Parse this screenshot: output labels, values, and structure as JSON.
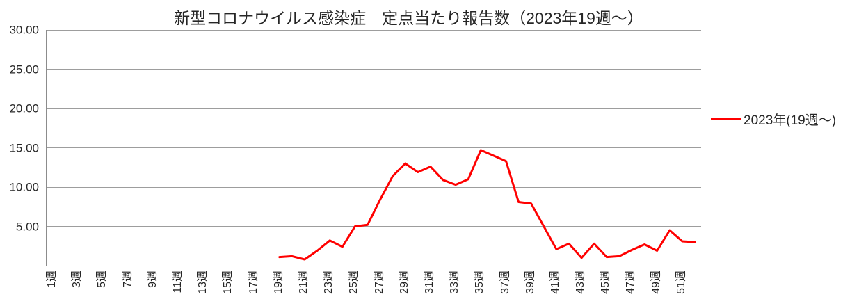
{
  "title": "新型コロナウイルス感染症　定点当たり報告数（2023年19週～）",
  "legend": {
    "label": "2023年(19週～)",
    "color": "#ff0000"
  },
  "chart_data": {
    "type": "line",
    "title": "新型コロナウイルス感染症　定点当たり報告数（2023年19週～）",
    "xlabel": "",
    "ylabel": "",
    "ylim": [
      0,
      30
    ],
    "grid": "horizontal-only",
    "legend_position": "right",
    "x_categories_count": 52,
    "y_ticks": [
      {
        "label": "30.00",
        "value": 30
      },
      {
        "label": "25.00",
        "value": 25
      },
      {
        "label": "20.00",
        "value": 20
      },
      {
        "label": "15.00",
        "value": 15
      },
      {
        "label": "10.00",
        "value": 10
      },
      {
        "label": "5.00",
        "value": 5
      }
    ],
    "x_ticks": [
      {
        "label": "1週",
        "week": 1
      },
      {
        "label": "3週",
        "week": 3
      },
      {
        "label": "5週",
        "week": 5
      },
      {
        "label": "7週",
        "week": 7
      },
      {
        "label": "9週",
        "week": 9
      },
      {
        "label": "11週",
        "week": 11
      },
      {
        "label": "13週",
        "week": 13
      },
      {
        "label": "15週",
        "week": 15
      },
      {
        "label": "17週",
        "week": 17
      },
      {
        "label": "19週",
        "week": 19
      },
      {
        "label": "21週",
        "week": 21
      },
      {
        "label": "23週",
        "week": 23
      },
      {
        "label": "25週",
        "week": 25
      },
      {
        "label": "27週",
        "week": 27
      },
      {
        "label": "29週",
        "week": 29
      },
      {
        "label": "31週",
        "week": 31
      },
      {
        "label": "33週",
        "week": 33
      },
      {
        "label": "35週",
        "week": 35
      },
      {
        "label": "37週",
        "week": 37
      },
      {
        "label": "39週",
        "week": 39
      },
      {
        "label": "41週",
        "week": 41
      },
      {
        "label": "43週",
        "week": 43
      },
      {
        "label": "45週",
        "week": 45
      },
      {
        "label": "47週",
        "week": 47
      },
      {
        "label": "49週",
        "week": 49
      },
      {
        "label": "51週",
        "week": 51
      }
    ],
    "series": [
      {
        "name": "2023年(19週～)",
        "color": "#ff0000",
        "week_start": 19,
        "weeks": [
          19,
          20,
          21,
          22,
          23,
          24,
          25,
          26,
          27,
          28,
          29,
          30,
          31,
          32,
          33,
          34,
          35,
          36,
          37,
          38,
          39,
          40,
          41,
          42,
          43,
          44,
          45,
          46,
          47,
          48,
          49,
          50,
          51,
          52
        ],
        "values": [
          1.1,
          1.2,
          0.8,
          1.9,
          3.2,
          2.4,
          5.0,
          5.2,
          8.4,
          11.4,
          13.0,
          11.9,
          12.6,
          10.9,
          10.3,
          11.0,
          14.7,
          14.0,
          13.3,
          8.1,
          7.9,
          5.0,
          2.1,
          2.8,
          1.0,
          2.8,
          1.1,
          1.2,
          2.0,
          2.7,
          1.9,
          4.5,
          3.1,
          3.0
        ]
      }
    ]
  }
}
